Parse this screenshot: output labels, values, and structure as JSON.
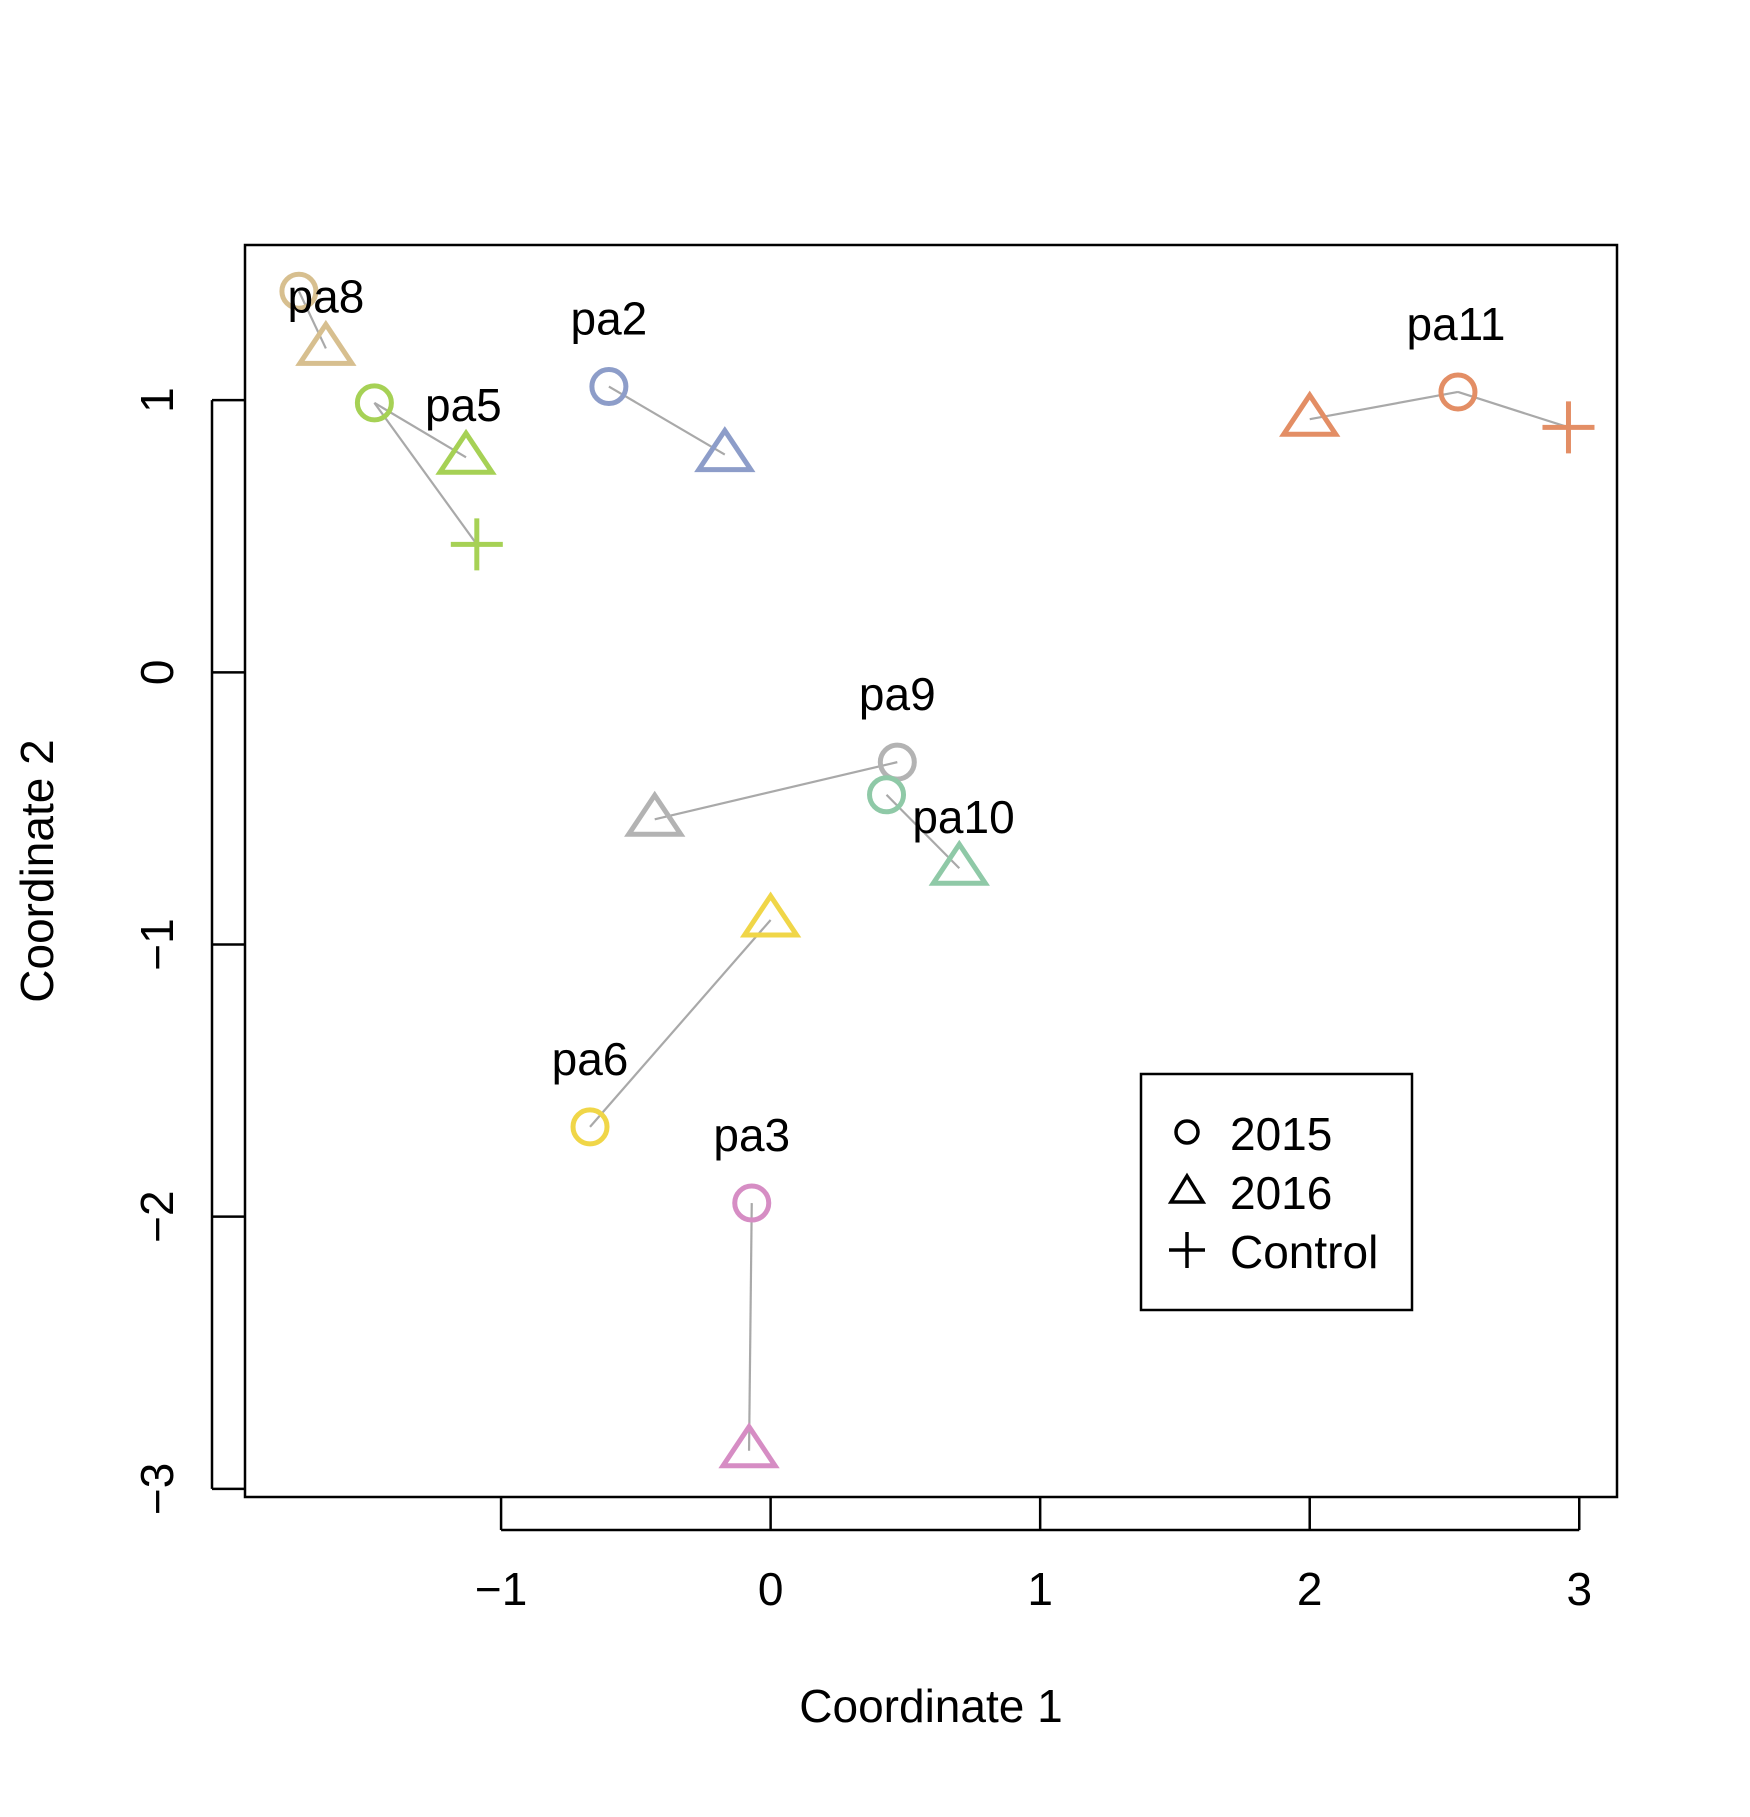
{
  "chart_data": {
    "type": "scatter",
    "title": "",
    "xlabel": "Coordinate 1",
    "ylabel": "Coordinate 2",
    "xlim": [
      -1.95,
      3.14
    ],
    "ylim": [
      -3.03,
      1.57
    ],
    "xticks": [
      -1,
      0,
      1,
      2,
      3
    ],
    "yticks": [
      -3,
      -2,
      -1,
      0,
      1
    ],
    "xtick_labels": [
      "−1",
      "0",
      "1",
      "2",
      "3"
    ],
    "ytick_labels": [
      "−3",
      "−2",
      "−1",
      "0",
      "1"
    ],
    "grid": false,
    "legend": {
      "position": "bottom-right",
      "entries": [
        {
          "marker": "circle",
          "label": "2015"
        },
        {
          "marker": "triangle",
          "label": "2016"
        },
        {
          "marker": "plus",
          "label": "Control"
        }
      ]
    },
    "series": [
      {
        "name": "pa8",
        "color": "#d7bf8f",
        "points": [
          {
            "year": "2015",
            "marker": "circle",
            "x": -1.75,
            "y": 1.4
          },
          {
            "year": "2016",
            "marker": "triangle",
            "x": -1.65,
            "y": 1.19
          }
        ]
      },
      {
        "name": "pa5",
        "color": "#a6d155",
        "points": [
          {
            "year": "2015",
            "marker": "circle",
            "x": -1.47,
            "y": 0.99
          },
          {
            "year": "2016",
            "marker": "triangle",
            "x": -1.13,
            "y": 0.79
          },
          {
            "year": "Control",
            "marker": "plus",
            "x": -1.09,
            "y": 0.47
          }
        ]
      },
      {
        "name": "pa2",
        "color": "#8d9dc9",
        "points": [
          {
            "year": "2015",
            "marker": "circle",
            "x": -0.6,
            "y": 1.05
          },
          {
            "year": "2016",
            "marker": "triangle",
            "x": -0.17,
            "y": 0.8
          }
        ]
      },
      {
        "name": "pa11",
        "color": "#e38e65",
        "points": [
          {
            "year": "2016",
            "marker": "triangle",
            "x": 2.0,
            "y": 0.93
          },
          {
            "year": "2015",
            "marker": "circle",
            "x": 2.55,
            "y": 1.03
          },
          {
            "year": "Control",
            "marker": "plus",
            "x": 2.96,
            "y": 0.9
          }
        ]
      },
      {
        "name": "pa9",
        "color": "#b3b3b3",
        "points": [
          {
            "year": "2015",
            "marker": "circle",
            "x": 0.47,
            "y": -0.33
          },
          {
            "year": "2016",
            "marker": "triangle",
            "x": -0.43,
            "y": -0.54
          }
        ]
      },
      {
        "name": "pa10",
        "color": "#8fc9a7",
        "points": [
          {
            "year": "2015",
            "marker": "circle",
            "x": 0.43,
            "y": -0.45
          },
          {
            "year": "2016",
            "marker": "triangle",
            "x": 0.7,
            "y": -0.72
          }
        ]
      },
      {
        "name": "pa6",
        "color": "#f0d648",
        "points": [
          {
            "year": "2015",
            "marker": "circle",
            "x": -0.67,
            "y": -1.67
          },
          {
            "year": "2016",
            "marker": "triangle",
            "x": 0.0,
            "y": -0.91
          }
        ]
      },
      {
        "name": "pa3",
        "color": "#d68dc4",
        "points": [
          {
            "year": "2015",
            "marker": "circle",
            "x": -0.07,
            "y": -1.95
          },
          {
            "year": "2016",
            "marker": "triangle",
            "x": -0.08,
            "y": -2.86
          }
        ]
      }
    ]
  }
}
